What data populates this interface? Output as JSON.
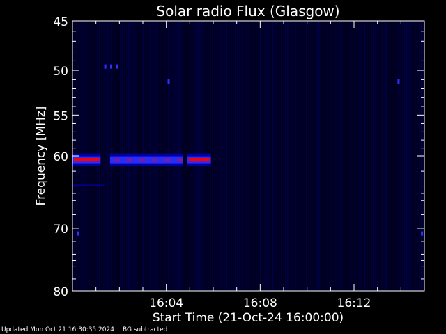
{
  "chart_data": {
    "type": "heatmap",
    "title": "Solar radio Flux (Glasgow)",
    "xlabel": "Start Time (21-Oct-24 16:00:00)",
    "ylabel": "Frequency [MHz]",
    "x_unit": "minutes after 16:00",
    "xlim": [
      0,
      15
    ],
    "ylim": [
      45,
      80
    ],
    "y_scale": "log",
    "y_inverted": true,
    "x_ticks": [
      {
        "value": 4,
        "label": "16:04"
      },
      {
        "value": 8,
        "label": "16:08"
      },
      {
        "value": 12,
        "label": "16:12"
      }
    ],
    "y_ticks": [
      {
        "value": 45,
        "label": "45"
      },
      {
        "value": 50,
        "label": "50"
      },
      {
        "value": 55,
        "label": "55"
      },
      {
        "value": 60,
        "label": "60"
      },
      {
        "value": 70,
        "label": "70"
      },
      {
        "value": 80,
        "label": "80"
      }
    ],
    "background": "#00001e",
    "colors": {
      "low": "#0000c8",
      "mid": "#3030ff",
      "high": "#ff0000"
    },
    "emission_bands": [
      {
        "freq": 60.5,
        "t_start": 0.0,
        "t_end": 1.2,
        "intensity": "high"
      },
      {
        "freq": 60.5,
        "t_start": 1.6,
        "t_end": 4.7,
        "intensity": "medium"
      },
      {
        "freq": 60.5,
        "t_start": 4.9,
        "t_end": 5.9,
        "intensity": "high"
      }
    ],
    "spots": [
      {
        "freq": 49.6,
        "time": 1.4
      },
      {
        "freq": 49.6,
        "time": 1.65
      },
      {
        "freq": 49.6,
        "time": 1.9
      },
      {
        "freq": 51.2,
        "time": 4.1
      },
      {
        "freq": 51.2,
        "time": 13.9
      },
      {
        "freq": 70.8,
        "time": 0.25
      },
      {
        "freq": 70.8,
        "time": 14.9
      }
    ]
  },
  "footer": {
    "updated": "Updated Mon Oct 21 16:30:35 2024",
    "note": "BG subtracted"
  }
}
